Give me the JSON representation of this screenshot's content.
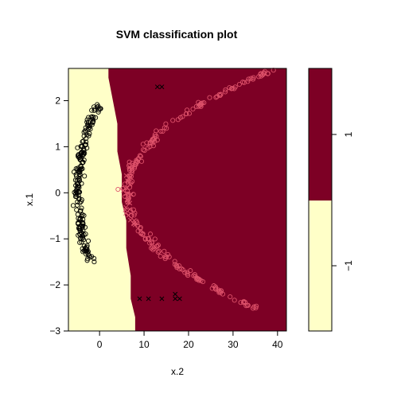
{
  "chart_data": {
    "type": "scatter",
    "title": "SVM classification plot",
    "xlabel": "x.2",
    "ylabel": "x.1",
    "xlim": [
      -7,
      42
    ],
    "ylim": [
      -3,
      2.7
    ],
    "x_ticks": [
      0,
      10,
      20,
      30,
      40
    ],
    "y_ticks": [
      -3,
      -2,
      -1,
      0,
      1,
      2
    ],
    "x_tick_labels": [
      "0",
      "10",
      "20",
      "30",
      "40"
    ],
    "y_tick_labels": [
      "−3",
      "−2",
      "−1",
      "0",
      "1",
      "2"
    ],
    "class_colors": {
      "-1": "#FFFFC8",
      "1": "#7D0025"
    },
    "point_colors": {
      "-1": "#000000",
      "1": "#DF536B"
    },
    "legend": {
      "levels": [
        "1",
        "−1"
      ],
      "split_fraction": 0.5
    },
    "decision_boundary": [
      [
        2.0,
        2.7
      ],
      [
        2.0,
        2.5
      ],
      [
        3.0,
        2.0
      ],
      [
        4.0,
        1.5
      ],
      [
        4.0,
        0.9
      ],
      [
        5.0,
        0.4
      ],
      [
        5.0,
        -0.2
      ],
      [
        6.0,
        -0.6
      ],
      [
        6.0,
        -1.2
      ],
      [
        7.0,
        -1.8
      ],
      [
        7.0,
        -2.3
      ],
      [
        8.0,
        -2.7
      ],
      [
        8.0,
        -3.0
      ]
    ],
    "markers": {
      "support_vector": "x",
      "other": "o"
    },
    "series": [
      {
        "class": "-1",
        "description_points": "left parabola arm",
        "center_curve": {
          "vertex_x": -5,
          "vertex_y": 0,
          "a": 1.1,
          "y_range": [
            -1.5,
            1.9
          ]
        }
      },
      {
        "class": "1",
        "description_points": "right parabola arm",
        "center_curve": {
          "vertex_x": 6,
          "vertex_y": 0,
          "a": 4.6,
          "y_range": [
            -2.5,
            2.8
          ]
        }
      }
    ]
  }
}
